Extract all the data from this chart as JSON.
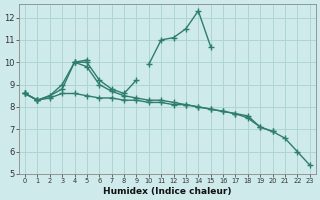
{
  "title": "",
  "xlabel": "Humidex (Indice chaleur)",
  "ylabel": "",
  "bg_color": "#ceeaea",
  "line_color": "#2e7d6e",
  "grid_color": "#aed4d4",
  "series1": {
    "x": [
      0,
      1,
      2,
      3,
      4,
      5,
      6,
      7,
      8,
      9,
      10,
      11,
      12,
      13,
      14,
      15,
      16,
      17,
      18,
      19,
      20,
      21,
      22,
      23
    ],
    "y": [
      8.6,
      8.3,
      null,
      null,
      10.0,
      10.1,
      null,
      null,
      null,
      null,
      9.9,
      11.0,
      11.1,
      11.5,
      12.3,
      10.7,
      null,
      null,
      null,
      null,
      null,
      null,
      null,
      null
    ]
  },
  "series2": {
    "x": [
      0,
      1,
      2,
      3,
      4,
      5,
      6,
      7,
      8,
      9,
      10,
      11,
      12,
      13,
      14,
      15,
      16,
      17,
      18,
      19,
      20,
      21,
      22,
      23
    ],
    "y": [
      8.6,
      8.3,
      8.5,
      9.0,
      10.0,
      10.0,
      9.2,
      8.8,
      8.6,
      9.2,
      null,
      null,
      null,
      null,
      null,
      null,
      null,
      null,
      null,
      null,
      null,
      null,
      null,
      null
    ]
  },
  "series3": {
    "x": [
      0,
      1,
      2,
      3,
      4,
      5,
      6,
      7,
      8,
      9,
      10,
      11,
      12,
      13,
      14,
      15,
      16,
      17,
      18,
      19,
      20,
      21,
      22,
      23
    ],
    "y": [
      8.6,
      8.3,
      8.4,
      8.6,
      8.6,
      8.5,
      8.4,
      8.4,
      8.3,
      8.3,
      8.2,
      8.2,
      8.1,
      8.1,
      8.0,
      7.9,
      7.8,
      7.7,
      7.6,
      7.1,
      6.9,
      6.6,
      6.0,
      5.4
    ]
  },
  "series4": {
    "x": [
      0,
      1,
      2,
      3,
      4,
      5,
      6,
      7,
      8,
      9,
      10,
      11,
      12,
      13,
      14,
      15,
      16,
      17,
      18,
      19,
      20,
      21,
      22,
      23
    ],
    "y": [
      8.6,
      8.3,
      8.5,
      8.8,
      10.0,
      9.8,
      9.0,
      8.7,
      8.5,
      8.4,
      8.3,
      8.3,
      8.2,
      8.1,
      8.0,
      7.9,
      7.8,
      7.7,
      7.5,
      7.1,
      6.9,
      null,
      null,
      null
    ]
  },
  "xlim": [
    -0.5,
    23.5
  ],
  "ylim": [
    5,
    12.6
  ],
  "yticks": [
    5,
    6,
    7,
    8,
    9,
    10,
    11,
    12
  ],
  "xticks": [
    0,
    1,
    2,
    3,
    4,
    5,
    6,
    7,
    8,
    9,
    10,
    11,
    12,
    13,
    14,
    15,
    16,
    17,
    18,
    19,
    20,
    21,
    22,
    23
  ]
}
